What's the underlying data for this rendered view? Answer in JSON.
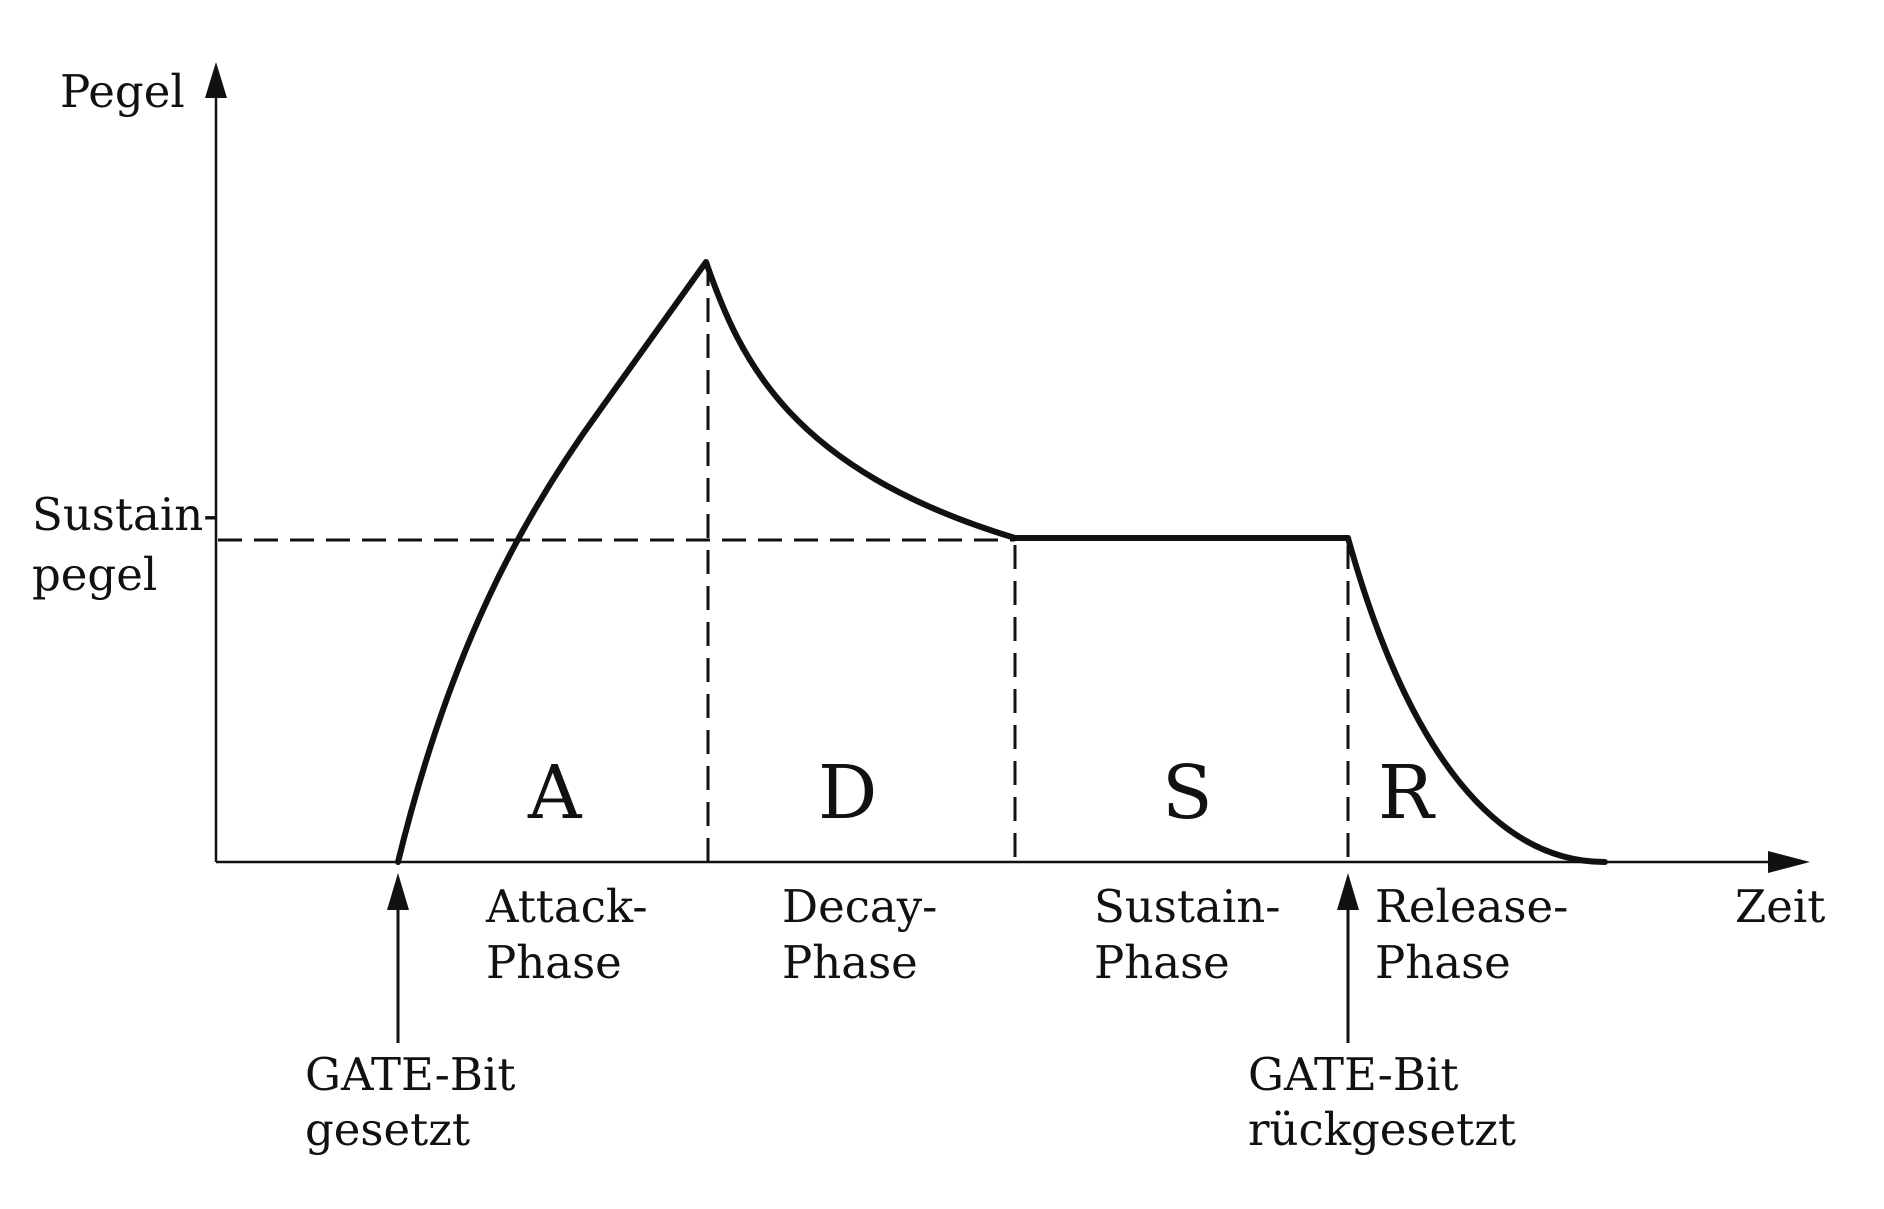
{
  "axes": {
    "y_label": "Pegel",
    "x_label": "Zeit",
    "sustain_label_line1": "Sustain-",
    "sustain_label_line2": "pegel"
  },
  "phases": [
    {
      "letter": "A",
      "label_line1": "Attack-",
      "label_line2": "Phase"
    },
    {
      "letter": "D",
      "label_line1": "Decay-",
      "label_line2": "Phase"
    },
    {
      "letter": "S",
      "label_line1": "Sustain-",
      "label_line2": "Phase"
    },
    {
      "letter": "R",
      "label_line1": "Release-",
      "label_line2": "Phase"
    }
  ],
  "gate_markers": {
    "set": {
      "line1": "GATE-Bit",
      "line2": "gesetzt"
    },
    "reset": {
      "line1": "GATE-Bit",
      "line2": "rückgesetzt"
    }
  }
}
